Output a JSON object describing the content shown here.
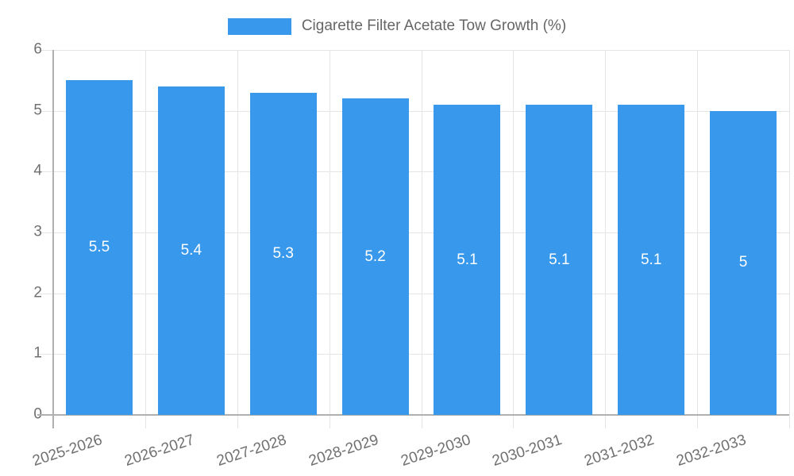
{
  "legend": {
    "label": "Cigarette Filter Acetate Tow Growth (%)"
  },
  "colors": {
    "bar": "#3898EC",
    "grid": "#E5E5E5",
    "axis": "#B0B0B0",
    "tick_text": "#707070",
    "legend_text": "#666666",
    "value_label": "#FFFFFF",
    "background": "#FFFFFF"
  },
  "chart_data": {
    "type": "bar",
    "title": "",
    "legend_entries": [
      "Cigarette Filter Acetate Tow Growth (%)"
    ],
    "legend_position": "top",
    "categories": [
      "2025-2026",
      "2026-2027",
      "2027-2028",
      "2028-2029",
      "2029-2030",
      "2030-2031",
      "2031-2032",
      "2032-2033"
    ],
    "values": [
      5.5,
      5.4,
      5.3,
      5.2,
      5.1,
      5.1,
      5.1,
      5
    ],
    "value_labels": [
      "5.5",
      "5.4",
      "5.3",
      "5.2",
      "5.1",
      "5.1",
      "5.1",
      "5"
    ],
    "xlabel": "",
    "ylabel": "",
    "ylim": [
      0,
      6
    ],
    "yticks": [
      0,
      1,
      2,
      3,
      4,
      5,
      6
    ],
    "grid": true,
    "bar_label_position": "center"
  }
}
